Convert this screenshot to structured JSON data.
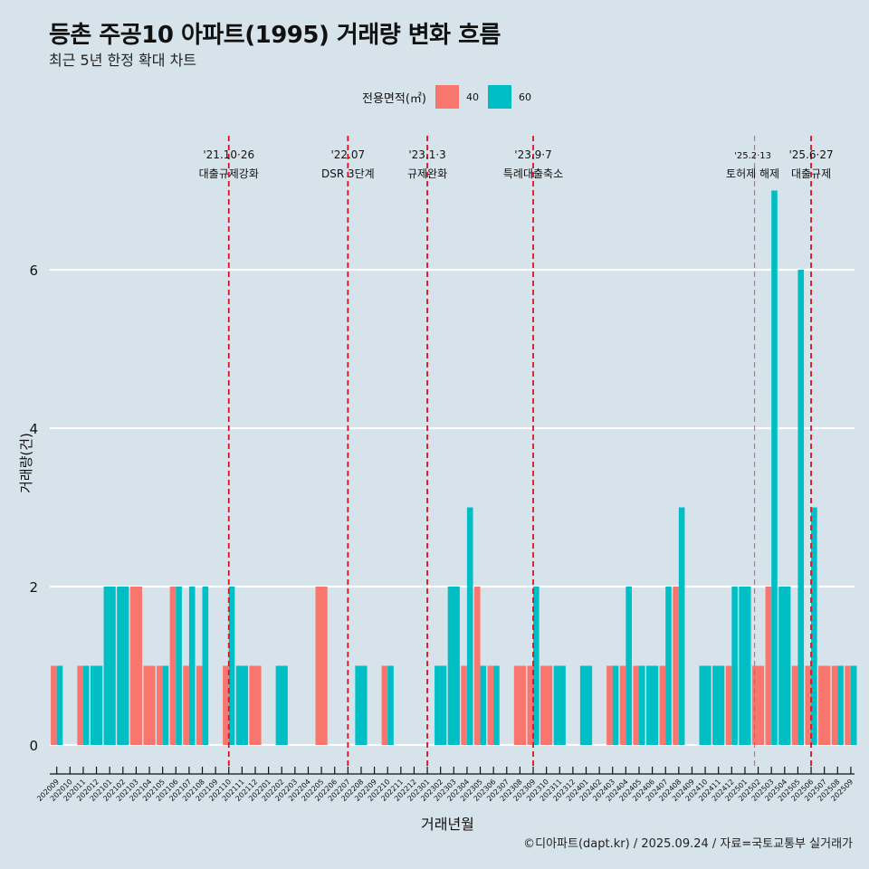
{
  "header": {
    "title": "등촌 주공10 아파트(1995) 거래량 변화 흐름",
    "subtitle": "최근 5년 한정 확대 차트"
  },
  "legend": {
    "title": "전용면적(㎡)",
    "items": [
      {
        "label": "40",
        "color": "#F8766D"
      },
      {
        "label": "60",
        "color": "#00BFC4"
      }
    ]
  },
  "footer": "©디아파트(dapt.kr) / 2025.09.24 / 자료=국토교통부 실거래가",
  "chart_data": {
    "type": "bar",
    "title": "등촌 주공10 아파트(1995) 거래량 변화 흐름",
    "subtitle": "최근 5년 한정 확대 차트",
    "xlabel": "거래년월",
    "ylabel": "거래량(건)",
    "ylim": [
      0,
      7.4
    ],
    "yticks": [
      0,
      2,
      4,
      6
    ],
    "grid": "horizontal",
    "legend_position": "top",
    "bar_mode": "dodge",
    "categories": [
      "202009",
      "202010",
      "202011",
      "202012",
      "202101",
      "202102",
      "202103",
      "202104",
      "202105",
      "202106",
      "202107",
      "202108",
      "202109",
      "202110",
      "202111",
      "202112",
      "202201",
      "202202",
      "202203",
      "202204",
      "202205",
      "202206",
      "202207",
      "202208",
      "202209",
      "202210",
      "202211",
      "202212",
      "202301",
      "202302",
      "202303",
      "202304",
      "202305",
      "202306",
      "202307",
      "202308",
      "202309",
      "202310",
      "202311",
      "202312",
      "202401",
      "202402",
      "202403",
      "202404",
      "202405",
      "202406",
      "202407",
      "202408",
      "202409",
      "202410",
      "202411",
      "202412",
      "202501",
      "202502",
      "202503",
      "202504",
      "202505",
      "202506",
      "202507",
      "202508",
      "202509"
    ],
    "series": [
      {
        "name": "40",
        "color": "#F8766D",
        "values": [
          1,
          0,
          1,
          0,
          0,
          0,
          2,
          1,
          1,
          2,
          1,
          1,
          0,
          1,
          0,
          1,
          0,
          0,
          0,
          0,
          2,
          0,
          0,
          0,
          0,
          1,
          0,
          0,
          0,
          0,
          0,
          1,
          2,
          1,
          0,
          1,
          1,
          1,
          0,
          0,
          0,
          0,
          1,
          1,
          1,
          0,
          1,
          2,
          0,
          0,
          0,
          1,
          0,
          1,
          2,
          0,
          1,
          1,
          1,
          1,
          1
        ]
      },
      {
        "name": "60",
        "color": "#00BFC4",
        "values": [
          1,
          0,
          1,
          1,
          2,
          2,
          0,
          0,
          1,
          2,
          2,
          2,
          0,
          2,
          1,
          0,
          0,
          1,
          0,
          0,
          0,
          0,
          0,
          1,
          0,
          1,
          0,
          0,
          0,
          1,
          2,
          3,
          1,
          1,
          0,
          0,
          2,
          0,
          1,
          0,
          1,
          0,
          1,
          2,
          1,
          1,
          2,
          3,
          0,
          1,
          1,
          2,
          2,
          0,
          7,
          2,
          6,
          3,
          0,
          1,
          1
        ]
      }
    ],
    "annotations": [
      {
        "month": "202110",
        "date": "'21.10·26",
        "label": "대출규제강화",
        "style": "bold"
      },
      {
        "month": "202207",
        "date": "'22.07",
        "label": "DSR 3단계",
        "style": "bold"
      },
      {
        "month": "202301",
        "date": "'23.1·3",
        "label": "규제완화",
        "style": "bold"
      },
      {
        "month": "202309",
        "date": "'23.9·7",
        "label": "특례대출축소",
        "style": "bold"
      },
      {
        "month": "202502",
        "date": "'25.2·13",
        "label": "토허제 해제",
        "style": "light"
      },
      {
        "month": "202506",
        "date": "'25.6·27",
        "label": "대출규제",
        "style": "bold"
      }
    ]
  }
}
